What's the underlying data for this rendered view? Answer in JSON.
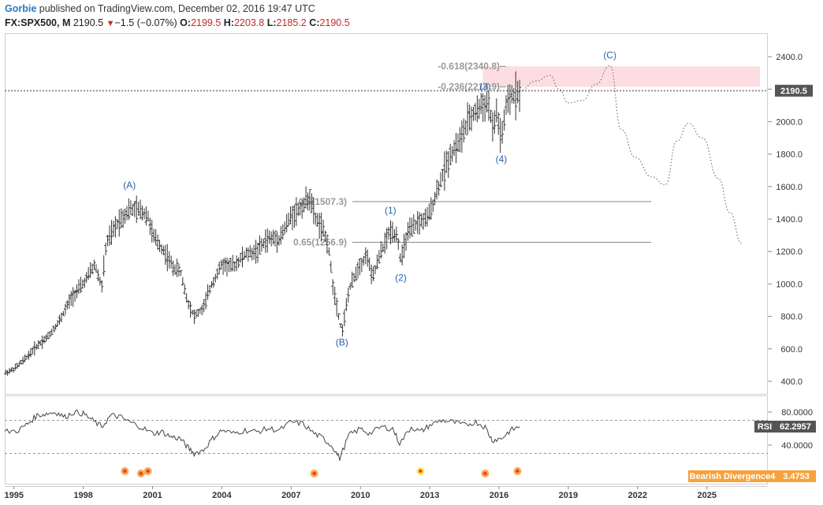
{
  "header": {
    "author": "Gorbie",
    "published_text": "published on TradingView.com, December 02, 2016 19:47 UTC"
  },
  "ohlc": {
    "symbol": "FX:SPX500, M",
    "last": "2190.5",
    "change_arrow": "▼",
    "change": "−1.5 (−0.07%)",
    "o_label": "O:",
    "o": "2199.5",
    "h_label": "H:",
    "h": "2203.8",
    "l_label": "L:",
    "l": "2185.2",
    "c_label": "C:",
    "c": "2190.5"
  },
  "price_badge": "2190.5",
  "rsi_label": "RSI",
  "rsi_value": "62.2957",
  "divergence_label": "Bearish Divergence4",
  "divergence_value": "3.4753",
  "colors": {
    "bar": "#333333",
    "wave_label": "#2962a8",
    "fib_text": "#9a9a9a",
    "target_box": "#fcdde2",
    "badge": "#555555",
    "divergence": "#f7a23a"
  },
  "chart_data": {
    "type": "line",
    "series": [
      {
        "values": [
          [
            1994.6,
            450
          ],
          [
            1995.0,
            475
          ],
          [
            1995.5,
            540
          ],
          [
            1996.0,
            620
          ],
          [
            1996.5,
            680
          ],
          [
            1997.0,
            780
          ],
          [
            1997.5,
            920
          ],
          [
            1998.0,
            1000
          ],
          [
            1998.5,
            1120
          ],
          [
            1998.8,
            980
          ],
          [
            1999.0,
            1250
          ],
          [
            1999.5,
            1380
          ],
          [
            2000.0,
            1460
          ],
          [
            2000.5,
            1450
          ],
          [
            2000.8,
            1420
          ],
          [
            2001.0,
            1300
          ],
          [
            2001.5,
            1200
          ],
          [
            2001.9,
            1100
          ],
          [
            2002.2,
            1080
          ],
          [
            2002.5,
            900
          ],
          [
            2002.8,
            800
          ],
          [
            2003.2,
            850
          ],
          [
            2003.5,
            980
          ],
          [
            2004.0,
            1120
          ],
          [
            2004.5,
            1110
          ],
          [
            2005.0,
            1180
          ],
          [
            2005.5,
            1200
          ],
          [
            2006.0,
            1280
          ],
          [
            2006.5,
            1280
          ],
          [
            2007.0,
            1420
          ],
          [
            2007.5,
            1480
          ],
          [
            2007.8,
            1540
          ],
          [
            2008.0,
            1420
          ],
          [
            2008.3,
            1350
          ],
          [
            2008.6,
            1250
          ],
          [
            2008.8,
            1000
          ],
          [
            2009.0,
            850
          ],
          [
            2009.2,
            700
          ],
          [
            2009.5,
            960
          ],
          [
            2009.9,
            1100
          ],
          [
            2010.3,
            1180
          ],
          [
            2010.5,
            1030
          ],
          [
            2010.9,
            1200
          ],
          [
            2011.3,
            1330
          ],
          [
            2011.6,
            1300
          ],
          [
            2011.75,
            1130
          ],
          [
            2012.0,
            1300
          ],
          [
            2012.5,
            1380
          ],
          [
            2012.9,
            1400
          ],
          [
            2013.2,
            1520
          ],
          [
            2013.5,
            1650
          ],
          [
            2013.9,
            1800
          ],
          [
            2014.3,
            1880
          ],
          [
            2014.6,
            1980
          ],
          [
            2014.9,
            2050
          ],
          [
            2015.2,
            2090
          ],
          [
            2015.4,
            2110
          ],
          [
            2015.6,
            2100
          ],
          [
            2015.7,
            1930
          ],
          [
            2015.9,
            2060
          ],
          [
            2016.1,
            1880
          ],
          [
            2016.3,
            2080
          ],
          [
            2016.5,
            2150
          ],
          [
            2016.7,
            2170
          ],
          [
            2016.9,
            2190.5
          ]
        ]
      },
      {
        "values": [
          [
            2016.9,
            2190.5
          ],
          [
            2017.6,
            2250
          ],
          [
            2018.2,
            2285
          ],
          [
            2018.6,
            2200
          ],
          [
            2019.0,
            2115
          ],
          [
            2019.6,
            2130
          ],
          [
            2020.2,
            2230
          ],
          [
            2020.8,
            2345
          ],
          [
            2021.3,
            1950
          ],
          [
            2021.9,
            1780
          ],
          [
            2022.6,
            1660
          ],
          [
            2023.2,
            1610
          ],
          [
            2023.7,
            1880
          ],
          [
            2024.2,
            1990
          ],
          [
            2024.8,
            1900
          ],
          [
            2025.5,
            1650
          ],
          [
            2026.0,
            1440
          ],
          [
            2026.5,
            1250
          ]
        ]
      }
    ],
    "rsi": [
      [
        1994.6,
        56
      ],
      [
        1995.2,
        58
      ],
      [
        1995.6,
        66
      ],
      [
        1996.0,
        76
      ],
      [
        1996.4,
        78
      ],
      [
        1996.8,
        80
      ],
      [
        1997.2,
        74
      ],
      [
        1997.6,
        80
      ],
      [
        1998.0,
        78
      ],
      [
        1998.4,
        70
      ],
      [
        1998.8,
        62
      ],
      [
        1999.2,
        76
      ],
      [
        1999.6,
        74
      ],
      [
        2000.0,
        68
      ],
      [
        2000.5,
        62
      ],
      [
        2001.0,
        54
      ],
      [
        2001.4,
        56
      ],
      [
        2001.8,
        50
      ],
      [
        2002.2,
        48
      ],
      [
        2002.5,
        38
      ],
      [
        2002.8,
        30
      ],
      [
        2003.2,
        34
      ],
      [
        2003.6,
        48
      ],
      [
        2004.0,
        58
      ],
      [
        2004.5,
        54
      ],
      [
        2005.0,
        58
      ],
      [
        2005.5,
        56
      ],
      [
        2006.0,
        60
      ],
      [
        2006.5,
        58
      ],
      [
        2007.0,
        68
      ],
      [
        2007.5,
        66
      ],
      [
        2008.0,
        54
      ],
      [
        2008.4,
        48
      ],
      [
        2008.8,
        38
      ],
      [
        2009.1,
        24
      ],
      [
        2009.5,
        52
      ],
      [
        2010.0,
        60
      ],
      [
        2010.4,
        54
      ],
      [
        2010.9,
        62
      ],
      [
        2011.4,
        60
      ],
      [
        2011.7,
        42
      ],
      [
        2012.2,
        62
      ],
      [
        2012.6,
        56
      ],
      [
        2013.0,
        64
      ],
      [
        2013.5,
        70
      ],
      [
        2014.0,
        68
      ],
      [
        2014.5,
        64
      ],
      [
        2015.0,
        68
      ],
      [
        2015.4,
        62
      ],
      [
        2015.7,
        46
      ],
      [
        2016.1,
        48
      ],
      [
        2016.5,
        58
      ],
      [
        2016.9,
        62.3
      ]
    ],
    "rsi_levels": [
      70,
      30
    ],
    "fib_levels": [
      {
        "label": "-0.618(2340.8)",
        "value": 2340.8
      },
      {
        "label": "-0.236(2214.9)",
        "value": 2214.9
      },
      {
        "label": "0.5(1507.3)",
        "value": 1507.3
      },
      {
        "label": "0.65(1256.9)",
        "value": 1256.9
      }
    ],
    "target_zone": [
      2214.9,
      2340.8
    ],
    "wave_labels": [
      {
        "text": "(A)",
        "x": 2000.0,
        "y": 1590
      },
      {
        "text": "(B)",
        "x": 2009.2,
        "y": 620
      },
      {
        "text": "(1)",
        "x": 2011.3,
        "y": 1435
      },
      {
        "text": "(2)",
        "x": 2011.75,
        "y": 1020
      },
      {
        "text": "(3)",
        "x": 2015.4,
        "y": 2195
      },
      {
        "text": "(4)",
        "x": 2016.1,
        "y": 1750
      },
      {
        "text": "(C)",
        "x": 2020.8,
        "y": 2390
      }
    ],
    "divergence_markers": [
      1999.8,
      2000.5,
      2000.8,
      2008.0,
      2012.6,
      2015.4,
      2016.8
    ],
    "x_ticks": [
      "1995",
      "1998",
      "2001",
      "2004",
      "2007",
      "2010",
      "2013",
      "2016",
      "2019",
      "2022",
      "2025"
    ],
    "y_ticks": [
      "400.0",
      "600.0",
      "800.0",
      "1000.0",
      "1200.0",
      "1400.0",
      "1600.0",
      "1800.0",
      "2000.0",
      "2200.0",
      "2400.0"
    ],
    "rsi_ticks": [
      "40.0000",
      "80.0000"
    ],
    "ylim": [
      320,
      2520
    ],
    "xlim": [
      1994.6,
      2027.8
    ]
  }
}
